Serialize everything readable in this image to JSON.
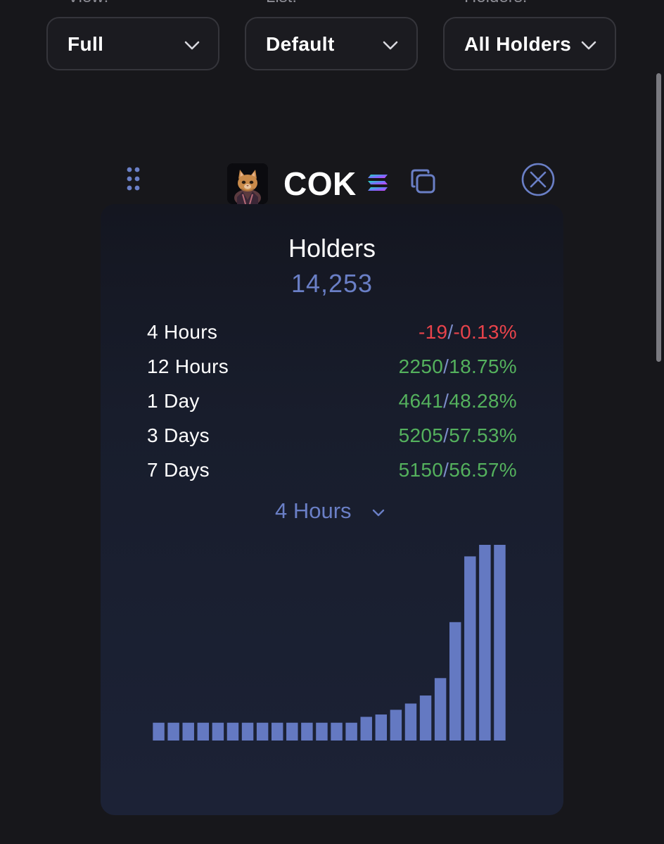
{
  "filters": [
    {
      "label": "View:",
      "value": "Full"
    },
    {
      "label": "List:",
      "value": "Default"
    },
    {
      "label": "Holders:",
      "value": "All Holders"
    }
  ],
  "token": {
    "name": "COK",
    "avatar": "cat-avatar",
    "chain_icon": "solana-icon"
  },
  "holders": {
    "title": "Holders",
    "count": "14,253"
  },
  "stats": [
    {
      "period": "4 Hours",
      "change": "-19",
      "percent": "-0.13%",
      "trend": "negative"
    },
    {
      "period": "12 Hours",
      "change": "2250",
      "percent": "18.75%",
      "trend": "positive"
    },
    {
      "period": "1 Day",
      "change": "4641",
      "percent": "48.28%",
      "trend": "positive"
    },
    {
      "period": "3 Days",
      "change": "5205",
      "percent": "57.53%",
      "trend": "positive"
    },
    {
      "period": "7 Days",
      "change": "5150",
      "percent": "56.57%",
      "trend": "positive"
    }
  ],
  "period_selector": {
    "value": "4 Hours"
  },
  "colors": {
    "accent": "#6a7fc6",
    "bar": "#6479c2",
    "negative": "#e8434b",
    "positive": "#54b15d"
  },
  "chart_data": {
    "type": "bar",
    "values": [
      9.1,
      9.1,
      9.1,
      9.1,
      9.1,
      9.1,
      9.1,
      9.1,
      9.1,
      9.1,
      9.1,
      9.1,
      9.1,
      9.1,
      12.1,
      13.3,
      15.7,
      18.9,
      23.0,
      31.9,
      60.5,
      94.1,
      100,
      100
    ],
    "ylim": [
      0,
      100
    ],
    "grid": false
  }
}
